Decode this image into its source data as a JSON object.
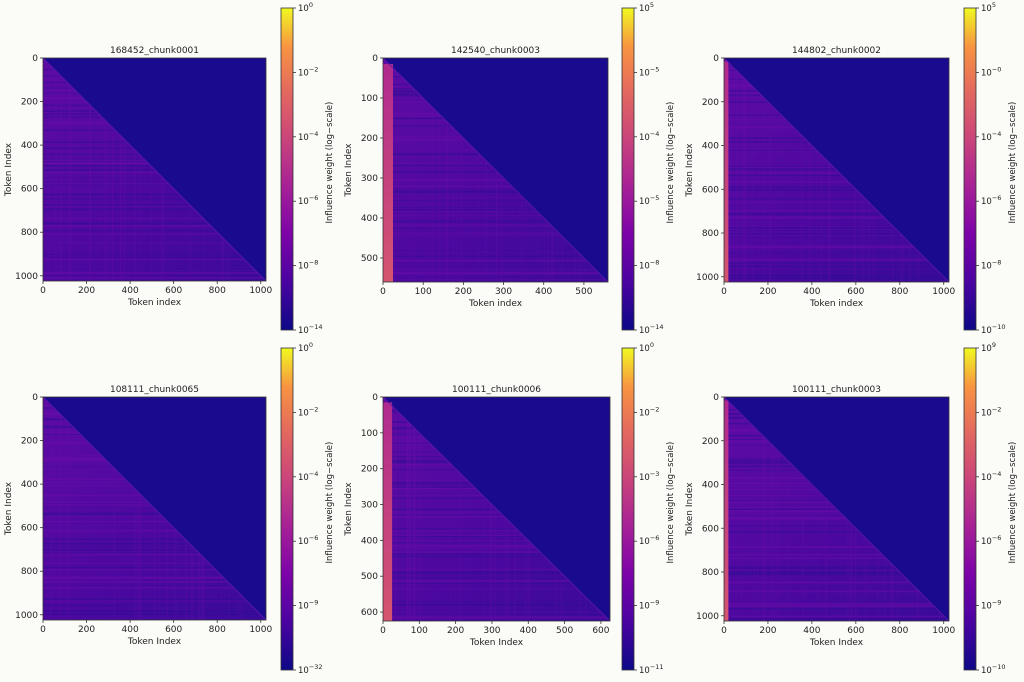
{
  "chart_data": [
    {
      "type": "heatmap",
      "title": "168452_chunk0001",
      "xlabel": "Token index",
      "ylabel": "Token Index",
      "xlim": [
        0,
        1024
      ],
      "ylim": [
        1024,
        0
      ],
      "xticks": [
        0,
        200,
        400,
        600,
        800,
        1000
      ],
      "yticks": [
        0,
        200,
        400,
        600,
        800,
        1000
      ],
      "colorbar": {
        "label": "Influence weight (log−scale)",
        "ticks": [
          {
            "base": "10",
            "exp": "0"
          },
          {
            "base": "10",
            "exp": "−2"
          },
          {
            "base": "10",
            "exp": "−4"
          },
          {
            "base": "10",
            "exp": "−6"
          },
          {
            "base": "10",
            "exp": "−8"
          },
          {
            "base": "10",
            "exp": "−14"
          }
        ]
      },
      "left_band_tokens": 0,
      "pattern": "lower-triangular"
    },
    {
      "type": "heatmap",
      "title": "142540_chunk0003",
      "xlabel": "Token index",
      "ylabel": "Token Index",
      "xlim": [
        0,
        560
      ],
      "ylim": [
        560,
        0
      ],
      "xticks": [
        0,
        100,
        200,
        300,
        400,
        500
      ],
      "yticks": [
        0,
        100,
        200,
        300,
        400,
        500
      ],
      "colorbar": {
        "label": "Influence weight (log−scale)",
        "ticks": [
          {
            "base": "10",
            "exp": "5"
          },
          {
            "base": "10",
            "exp": "−5"
          },
          {
            "base": "10",
            "exp": "−4"
          },
          {
            "base": "10",
            "exp": "−5"
          },
          {
            "base": "10",
            "exp": "−8"
          },
          {
            "base": "10",
            "exp": "−14"
          }
        ]
      },
      "left_band_tokens": 25,
      "pattern": "lower-triangular"
    },
    {
      "type": "heatmap",
      "title": "144802_chunk0002",
      "xlabel": "Token index",
      "ylabel": "Token Index",
      "xlim": [
        0,
        1024
      ],
      "ylim": [
        1024,
        0
      ],
      "xticks": [
        0,
        200,
        400,
        600,
        800,
        1000
      ],
      "yticks": [
        0,
        200,
        400,
        600,
        800,
        1000
      ],
      "colorbar": {
        "label": "Influence weight (log−scale)",
        "ticks": [
          {
            "base": "10",
            "exp": "5"
          },
          {
            "base": "10",
            "exp": "−0"
          },
          {
            "base": "10",
            "exp": "−4"
          },
          {
            "base": "10",
            "exp": "−6"
          },
          {
            "base": "10",
            "exp": "−8"
          },
          {
            "base": "10",
            "exp": "−10"
          }
        ]
      },
      "left_band_tokens": 20,
      "pattern": "lower-triangular"
    },
    {
      "type": "heatmap",
      "title": "108111_chunk0065",
      "xlabel": "Token Index",
      "ylabel": "Token Index",
      "xlim": [
        0,
        1024
      ],
      "ylim": [
        1024,
        0
      ],
      "xticks": [
        0,
        200,
        400,
        600,
        800,
        1000
      ],
      "yticks": [
        0,
        200,
        400,
        600,
        800,
        1000
      ],
      "colorbar": {
        "label": "Influence weight (log−scale)",
        "ticks": [
          {
            "base": "10",
            "exp": "0"
          },
          {
            "base": "10",
            "exp": "−2"
          },
          {
            "base": "10",
            "exp": "−4"
          },
          {
            "base": "10",
            "exp": "−6"
          },
          {
            "base": "10",
            "exp": "−9"
          },
          {
            "base": "10",
            "exp": "−32"
          }
        ]
      },
      "left_band_tokens": 0,
      "pattern": "lower-triangular"
    },
    {
      "type": "heatmap",
      "title": "100111_chunk0006",
      "xlabel": "Token Index",
      "ylabel": "Token Index",
      "xlim": [
        0,
        625
      ],
      "ylim": [
        625,
        0
      ],
      "xticks": [
        0,
        100,
        200,
        300,
        400,
        500,
        600
      ],
      "yticks": [
        0,
        100,
        200,
        300,
        400,
        500,
        600
      ],
      "colorbar": {
        "label": "Influence weight (log−scale)",
        "ticks": [
          {
            "base": "10",
            "exp": "0"
          },
          {
            "base": "10",
            "exp": "−2"
          },
          {
            "base": "10",
            "exp": "−3"
          },
          {
            "base": "10",
            "exp": "−6"
          },
          {
            "base": "10",
            "exp": "−9"
          },
          {
            "base": "10",
            "exp": "−11"
          }
        ]
      },
      "left_band_tokens": 25,
      "pattern": "lower-triangular"
    },
    {
      "type": "heatmap",
      "title": "100111_chunk0003",
      "xlabel": "Token Index",
      "ylabel": "Token Index",
      "xlim": [
        0,
        1024
      ],
      "ylim": [
        1024,
        0
      ],
      "xticks": [
        0,
        200,
        400,
        600,
        800,
        1000
      ],
      "yticks": [
        0,
        200,
        400,
        600,
        800,
        1000
      ],
      "colorbar": {
        "label": "Influence weight (log−scale)",
        "ticks": [
          {
            "base": "10",
            "exp": "9"
          },
          {
            "base": "10",
            "exp": "−2"
          },
          {
            "base": "10",
            "exp": "−4"
          },
          {
            "base": "10",
            "exp": "−6"
          },
          {
            "base": "10",
            "exp": "−9"
          },
          {
            "base": "10",
            "exp": "−10"
          }
        ]
      },
      "left_band_tokens": 20,
      "pattern": "lower-triangular"
    }
  ]
}
